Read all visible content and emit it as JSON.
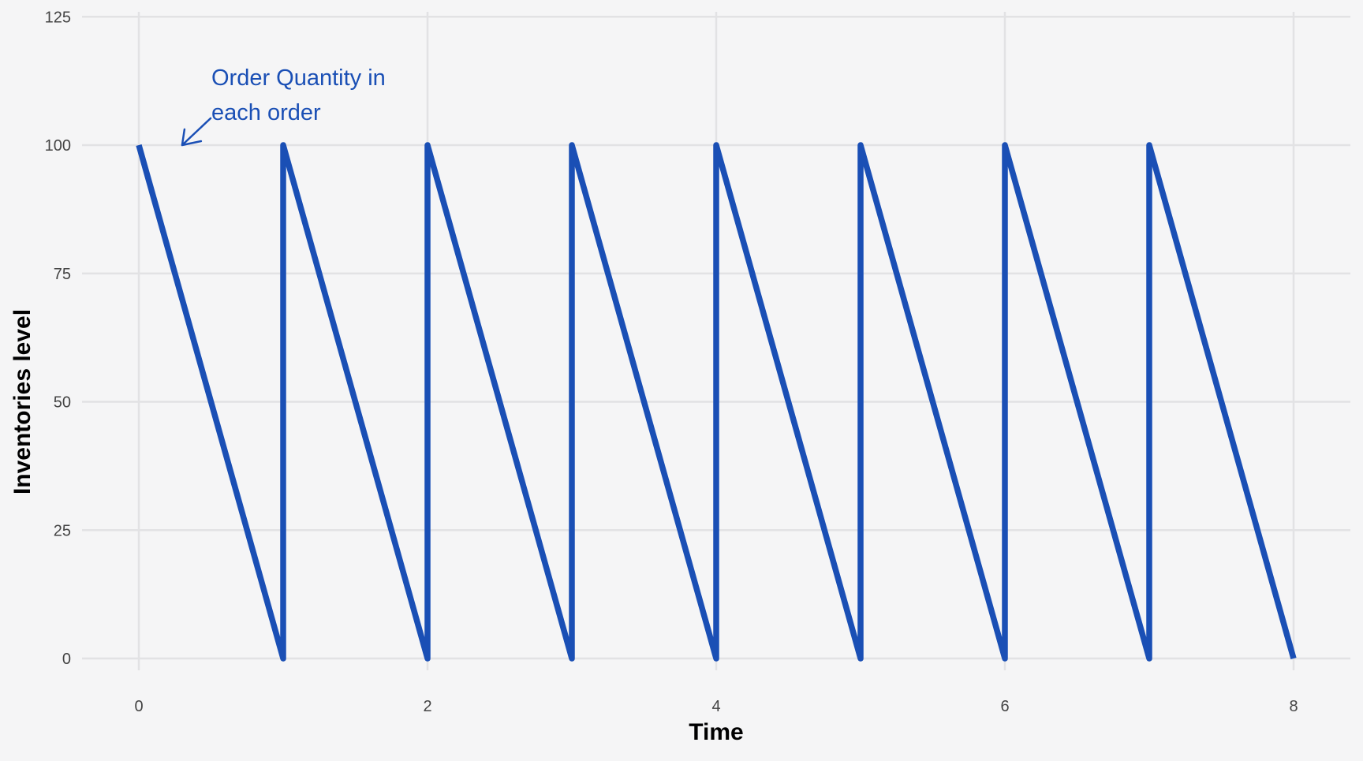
{
  "chart_data": {
    "type": "line",
    "xlabel": "Time",
    "ylabel": "Inventories level",
    "xlim": [
      -0.4,
      8.4
    ],
    "ylim": [
      -5,
      125
    ],
    "x_ticks": [
      0,
      2,
      4,
      6,
      8
    ],
    "y_ticks": [
      0,
      25,
      50,
      75,
      100,
      125
    ],
    "grid": true,
    "line_color": "#1a4fb5",
    "series": [
      {
        "x": [
          0,
          1,
          1,
          2,
          2,
          3,
          3,
          4,
          4,
          5,
          5,
          6,
          6,
          7,
          7,
          8
        ],
        "y": [
          100,
          0,
          100,
          0,
          100,
          0,
          100,
          0,
          100,
          0,
          100,
          0,
          100,
          0,
          100,
          0
        ]
      }
    ],
    "annotation": {
      "lines": [
        "Order Quantity in",
        "each order"
      ],
      "points_to": {
        "x": 0.3,
        "y": 100
      },
      "color": "#1a4fb5"
    }
  }
}
